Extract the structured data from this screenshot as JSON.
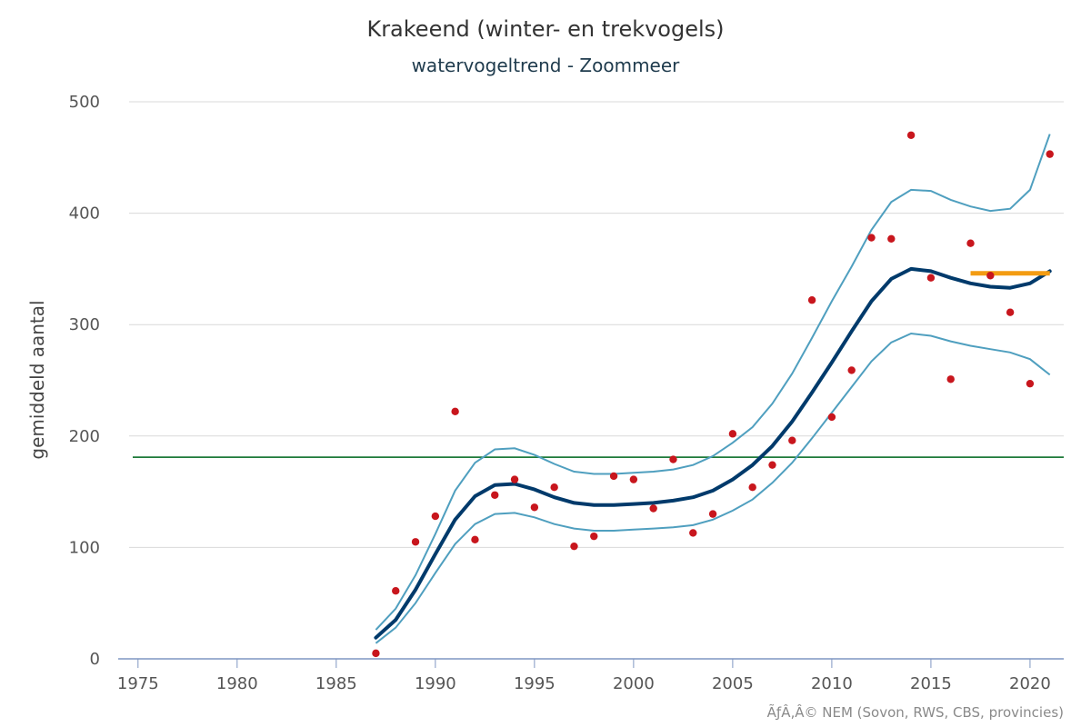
{
  "title": "Krakeend (winter- en trekvogels)",
  "subtitle": "watervogeltrend - Zoommeer",
  "credit": "ÃƒÂ‚Â© NEM (Sovon, RWS, CBS, provincies)",
  "colors": {
    "trend": "#003a6b",
    "band": "#4f9fbf",
    "points": "#c8161d",
    "reference": "#1e7b3a",
    "recent": "#f39c12",
    "grid": "#d9d9d9"
  },
  "chart_data": {
    "type": "line",
    "title": "Krakeend (winter- en trekvogels)",
    "subtitle": "watervogeltrend - Zoommeer",
    "xlabel": "",
    "ylabel": "gemiddeld aantal",
    "xlim": [
      1974,
      2021.7
    ],
    "ylim": [
      0,
      500
    ],
    "xticks": [
      1975,
      1980,
      1985,
      1990,
      1995,
      2000,
      2005,
      2010,
      2015,
      2020
    ],
    "yticks": [
      0,
      100,
      200,
      300,
      400,
      500
    ],
    "grid": true,
    "series": [
      {
        "kind": "trend",
        "x": [
          1987,
          1988,
          1989,
          1990,
          1991,
          1992,
          1993,
          1994,
          1995,
          1996,
          1997,
          1998,
          1999,
          2000,
          2001,
          2002,
          2003,
          2004,
          2005,
          2006,
          2007,
          2008,
          2009,
          2010,
          2011,
          2012,
          2013,
          2014,
          2015,
          2016,
          2017,
          2018,
          2019,
          2020,
          2021
        ],
        "values": [
          19,
          35,
          62,
          94,
          125,
          146,
          156,
          157,
          152,
          145,
          140,
          138,
          138,
          139,
          140,
          142,
          145,
          151,
          161,
          174,
          191,
          213,
          239,
          266,
          294,
          321,
          341,
          350,
          348,
          342,
          337,
          334,
          333,
          337,
          348
        ]
      },
      {
        "kind": "upper-bound",
        "x": [
          1987,
          1988,
          1989,
          1990,
          1991,
          1992,
          1993,
          1994,
          1995,
          1996,
          1997,
          1998,
          1999,
          2000,
          2001,
          2002,
          2003,
          2004,
          2005,
          2006,
          2007,
          2008,
          2009,
          2010,
          2011,
          2012,
          2013,
          2014,
          2015,
          2016,
          2017,
          2018,
          2019,
          2020,
          2021
        ],
        "values": [
          26,
          45,
          75,
          112,
          151,
          176,
          188,
          189,
          183,
          175,
          168,
          166,
          166,
          167,
          168,
          170,
          174,
          182,
          194,
          208,
          229,
          256,
          288,
          321,
          352,
          385,
          410,
          421,
          420,
          412,
          406,
          402,
          404,
          421,
          471
        ]
      },
      {
        "kind": "lower-bound",
        "x": [
          1987,
          1988,
          1989,
          1990,
          1991,
          1992,
          1993,
          1994,
          1995,
          1996,
          1997,
          1998,
          1999,
          2000,
          2001,
          2002,
          2003,
          2004,
          2005,
          2006,
          2007,
          2008,
          2009,
          2010,
          2011,
          2012,
          2013,
          2014,
          2015,
          2016,
          2017,
          2018,
          2019,
          2020,
          2021
        ],
        "values": [
          14,
          28,
          50,
          77,
          103,
          121,
          130,
          131,
          127,
          121,
          117,
          115,
          115,
          116,
          117,
          118,
          120,
          125,
          133,
          143,
          158,
          176,
          198,
          221,
          244,
          267,
          284,
          292,
          290,
          285,
          281,
          278,
          275,
          269,
          255
        ]
      },
      {
        "kind": "observed",
        "x": [
          1987,
          1988,
          1989,
          1990,
          1991,
          1992,
          1993,
          1994,
          1995,
          1996,
          1997,
          1998,
          1999,
          2000,
          2001,
          2002,
          2003,
          2004,
          2005,
          2006,
          2007,
          2008,
          2009,
          2010,
          2011,
          2012,
          2013,
          2014,
          2015,
          2016,
          2017,
          2018,
          2019,
          2020,
          2021
        ],
        "values": [
          5,
          61,
          105,
          128,
          222,
          107,
          147,
          161,
          136,
          154,
          101,
          110,
          164,
          161,
          135,
          179,
          113,
          130,
          202,
          154,
          174,
          196,
          322,
          217,
          259,
          378,
          377,
          470,
          342,
          251,
          373,
          344,
          311,
          247,
          453
        ]
      },
      {
        "kind": "reference",
        "x": [
          1974,
          2021.7
        ],
        "values": [
          181,
          181
        ]
      },
      {
        "kind": "recent-mean",
        "x": [
          2017,
          2021
        ],
        "values": [
          346,
          346
        ]
      }
    ]
  }
}
